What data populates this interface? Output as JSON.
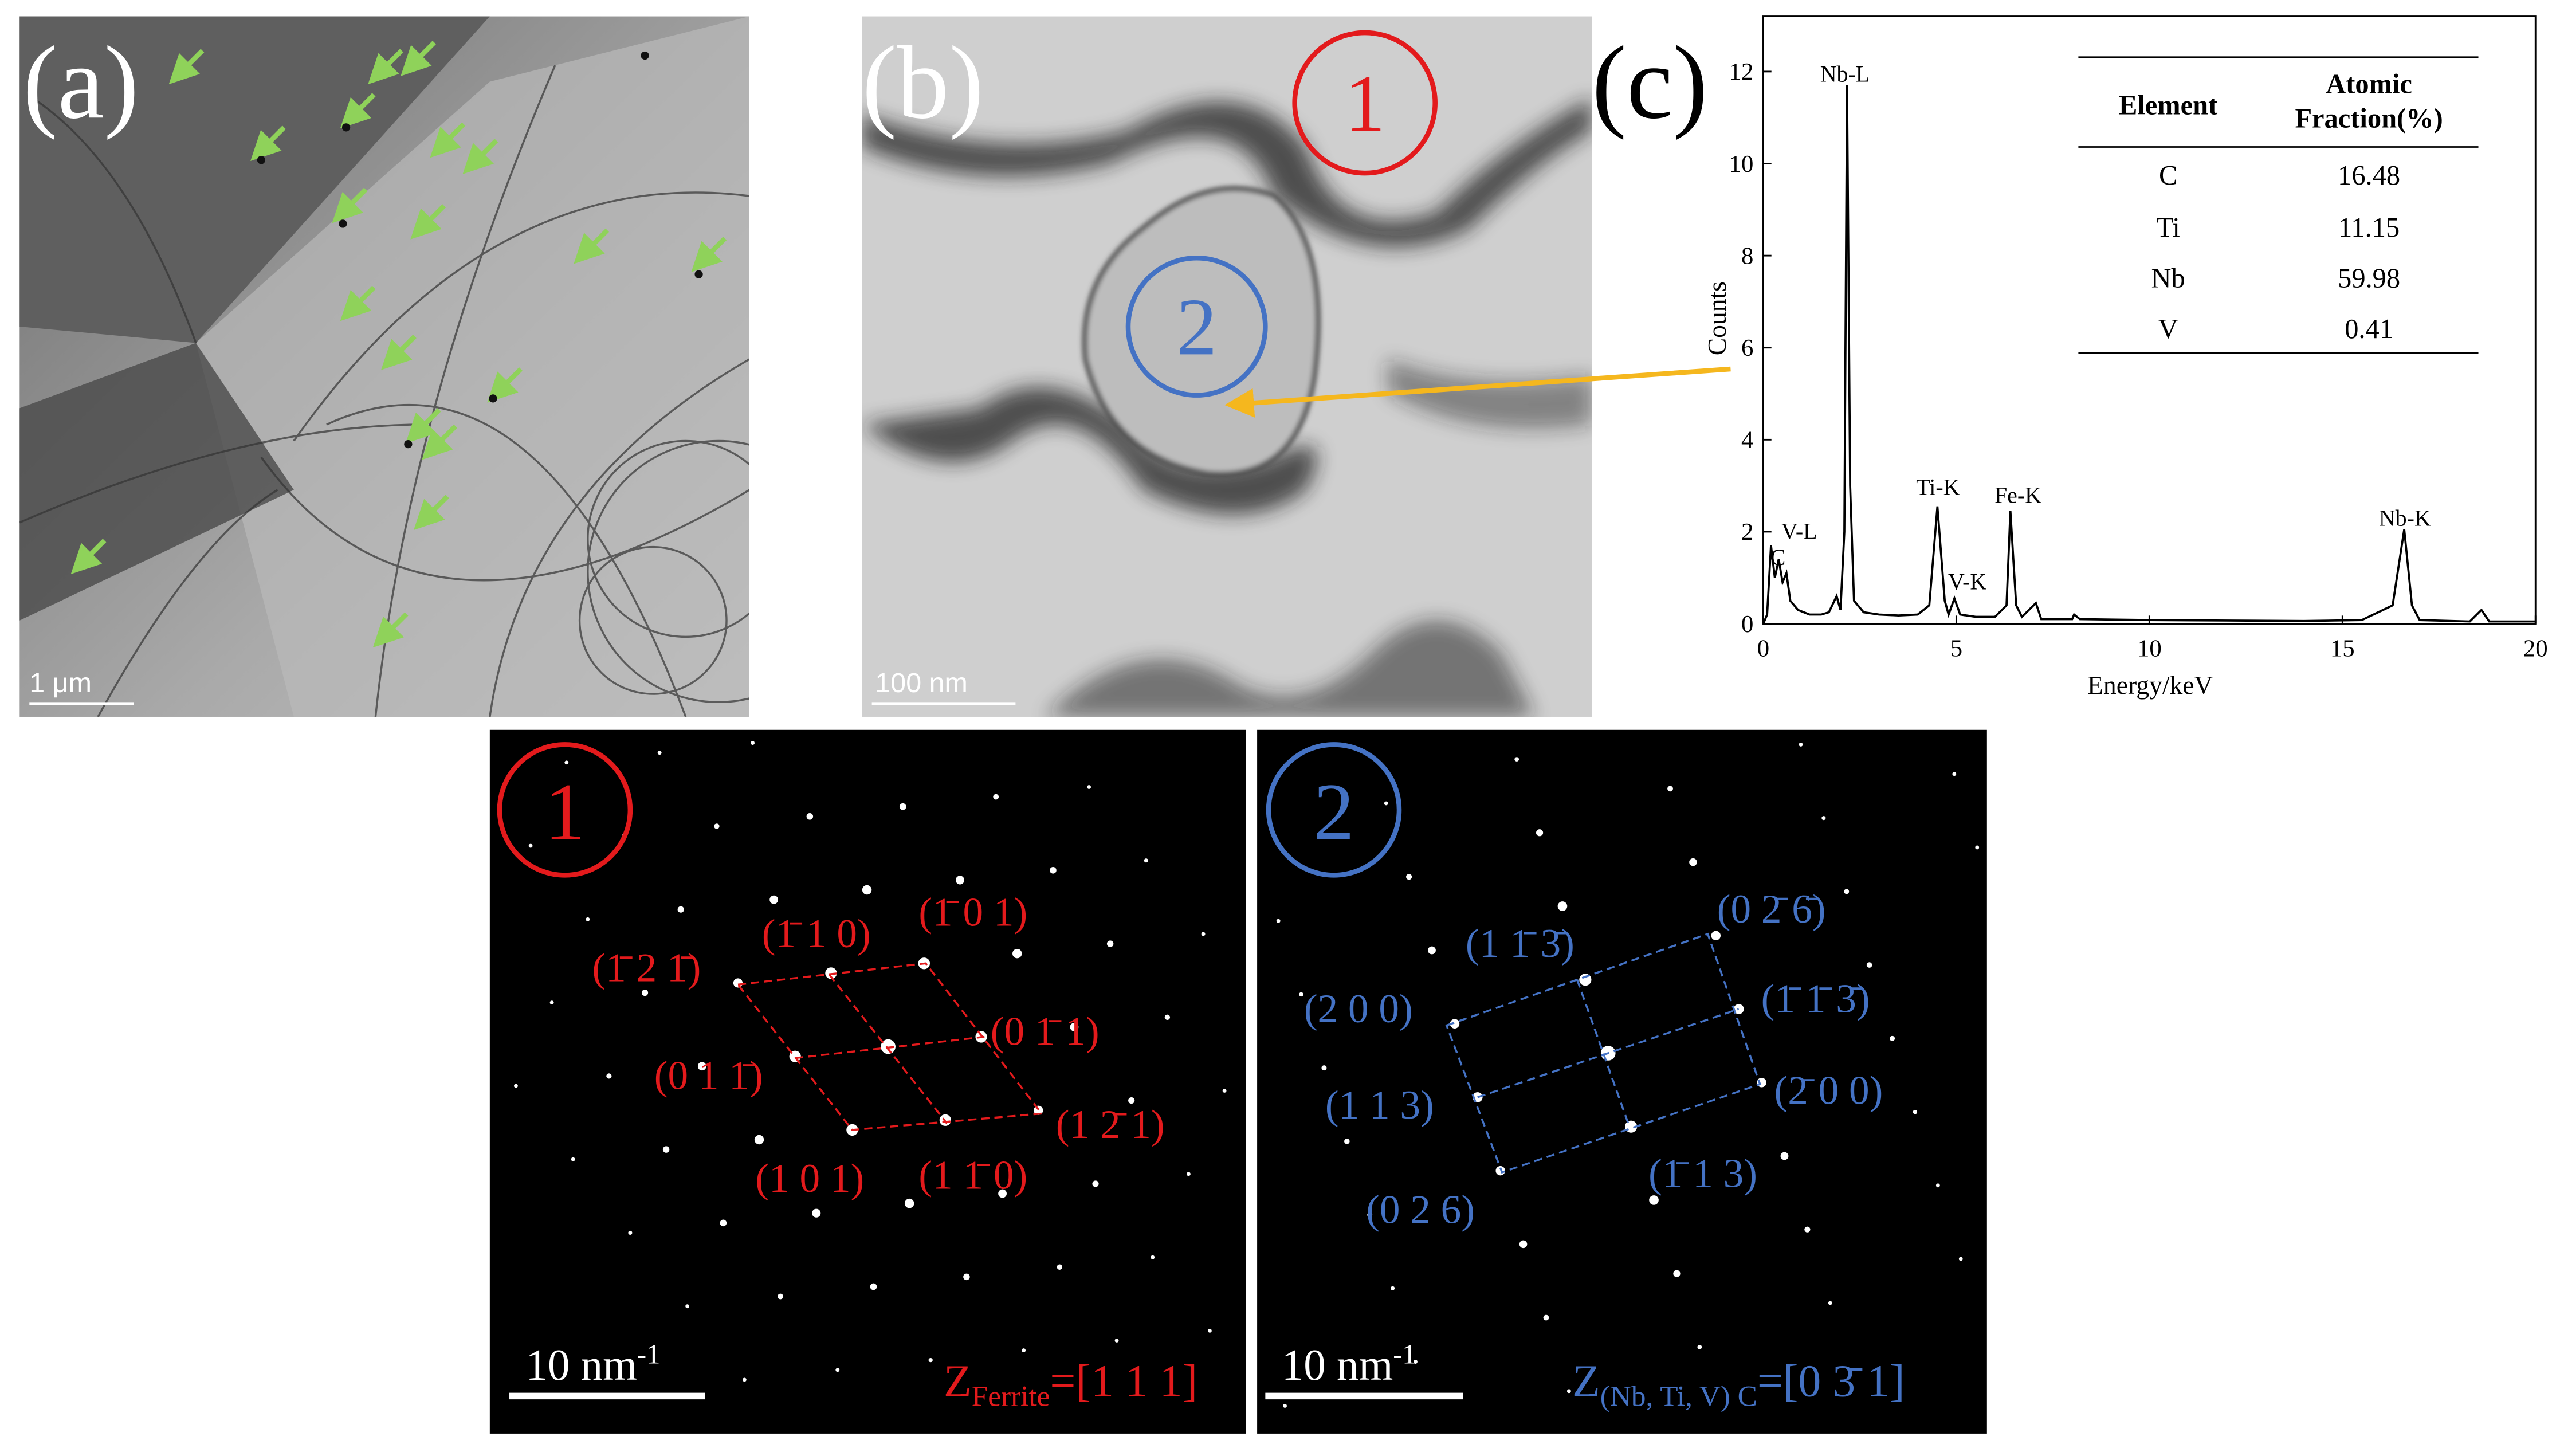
{
  "panels": {
    "a": {
      "label": "(a)",
      "scale_bar": "1 μm"
    },
    "b": {
      "label": "(b)",
      "scale_bar": "100 nm",
      "circle_1": "1",
      "circle_2": "2"
    },
    "c": {
      "label": "(c)"
    },
    "sad_1": {
      "circle": "1",
      "scale_bar": {
        "text": "10 nm",
        "sup": "-1"
      },
      "zone": {
        "main": "Z",
        "sub": "Ferrite",
        "rest": "=[1 1 1]"
      },
      "spots": [
        "(1̄ 1 0)",
        "(1̄ 0 1)",
        "(1̄ 2 1̄)",
        "(0 1̄ 1)",
        "(0 1 1̄)",
        "(1 2̄ 1)",
        "(1 0 1)",
        "(1 1̄ 0)"
      ]
    },
    "sad_2": {
      "circle": "2",
      "scale_bar": {
        "text": "10 nm",
        "sup": "-1"
      },
      "zone": {
        "main": "Z",
        "sub": "(Nb, Ti, V) C",
        "rest": "=[0 3̄ 1]"
      },
      "spots": [
        "(1 1̄ 3̄)",
        "(0 2̄ 6̄)",
        "(2 0 0)",
        "(1̄ 1̄ 3̄)",
        "(2̄ 0 0)",
        "(1 1 3)",
        "(1̄ 1 3)",
        "(0 2 6)"
      ]
    }
  },
  "table": {
    "columns": [
      "Element",
      "Atomic Fraction(%)"
    ],
    "rows": [
      [
        "C",
        "16.48"
      ],
      [
        "Ti",
        "11.15"
      ],
      [
        "Nb",
        "59.98"
      ],
      [
        "V",
        "0.41"
      ]
    ]
  },
  "chart_data": {
    "type": "line",
    "x_label": "Energy/keV",
    "y_label": "Counts",
    "color": "#000000",
    "x": [
      0,
      0.1,
      0.2,
      0.3,
      0.4,
      0.5,
      0.6,
      0.7,
      0.9,
      1.2,
      1.5,
      1.7,
      1.9,
      2.0,
      2.1,
      2.17,
      2.25,
      2.35,
      2.6,
      3.0,
      3.5,
      4.0,
      4.3,
      4.51,
      4.7,
      4.8,
      4.95,
      5.1,
      5.5,
      6.0,
      6.3,
      6.4,
      6.55,
      6.7,
      7.06,
      7.2,
      8.0,
      8.05,
      8.2,
      10,
      12,
      14,
      15.5,
      16.3,
      16.6,
      16.8,
      17,
      18.3,
      18.6,
      18.8,
      20
    ],
    "values": [
      0,
      0.2,
      1.7,
      1.0,
      1.4,
      0.9,
      1.1,
      0.5,
      0.3,
      0.2,
      0.2,
      0.25,
      0.6,
      0.3,
      2.0,
      11.7,
      3.0,
      0.5,
      0.25,
      0.2,
      0.18,
      0.2,
      0.4,
      2.55,
      0.5,
      0.2,
      0.55,
      0.2,
      0.15,
      0.15,
      0.4,
      2.45,
      0.4,
      0.15,
      0.45,
      0.1,
      0.1,
      0.2,
      0.1,
      0.08,
      0.07,
      0.06,
      0.08,
      0.4,
      2.05,
      0.4,
      0.08,
      0.05,
      0.3,
      0.05,
      0.05
    ],
    "xlim": [
      0,
      20
    ],
    "ylim": [
      0,
      13.2
    ],
    "xticks": [
      0,
      5,
      10,
      15,
      20
    ],
    "yticks": [
      0,
      2,
      4,
      6,
      8,
      10,
      12
    ],
    "annotations": [
      "Nb-L",
      "Ti-K",
      "Fe-K",
      "V-K",
      "Nb-K",
      "V-L",
      "C"
    ]
  }
}
